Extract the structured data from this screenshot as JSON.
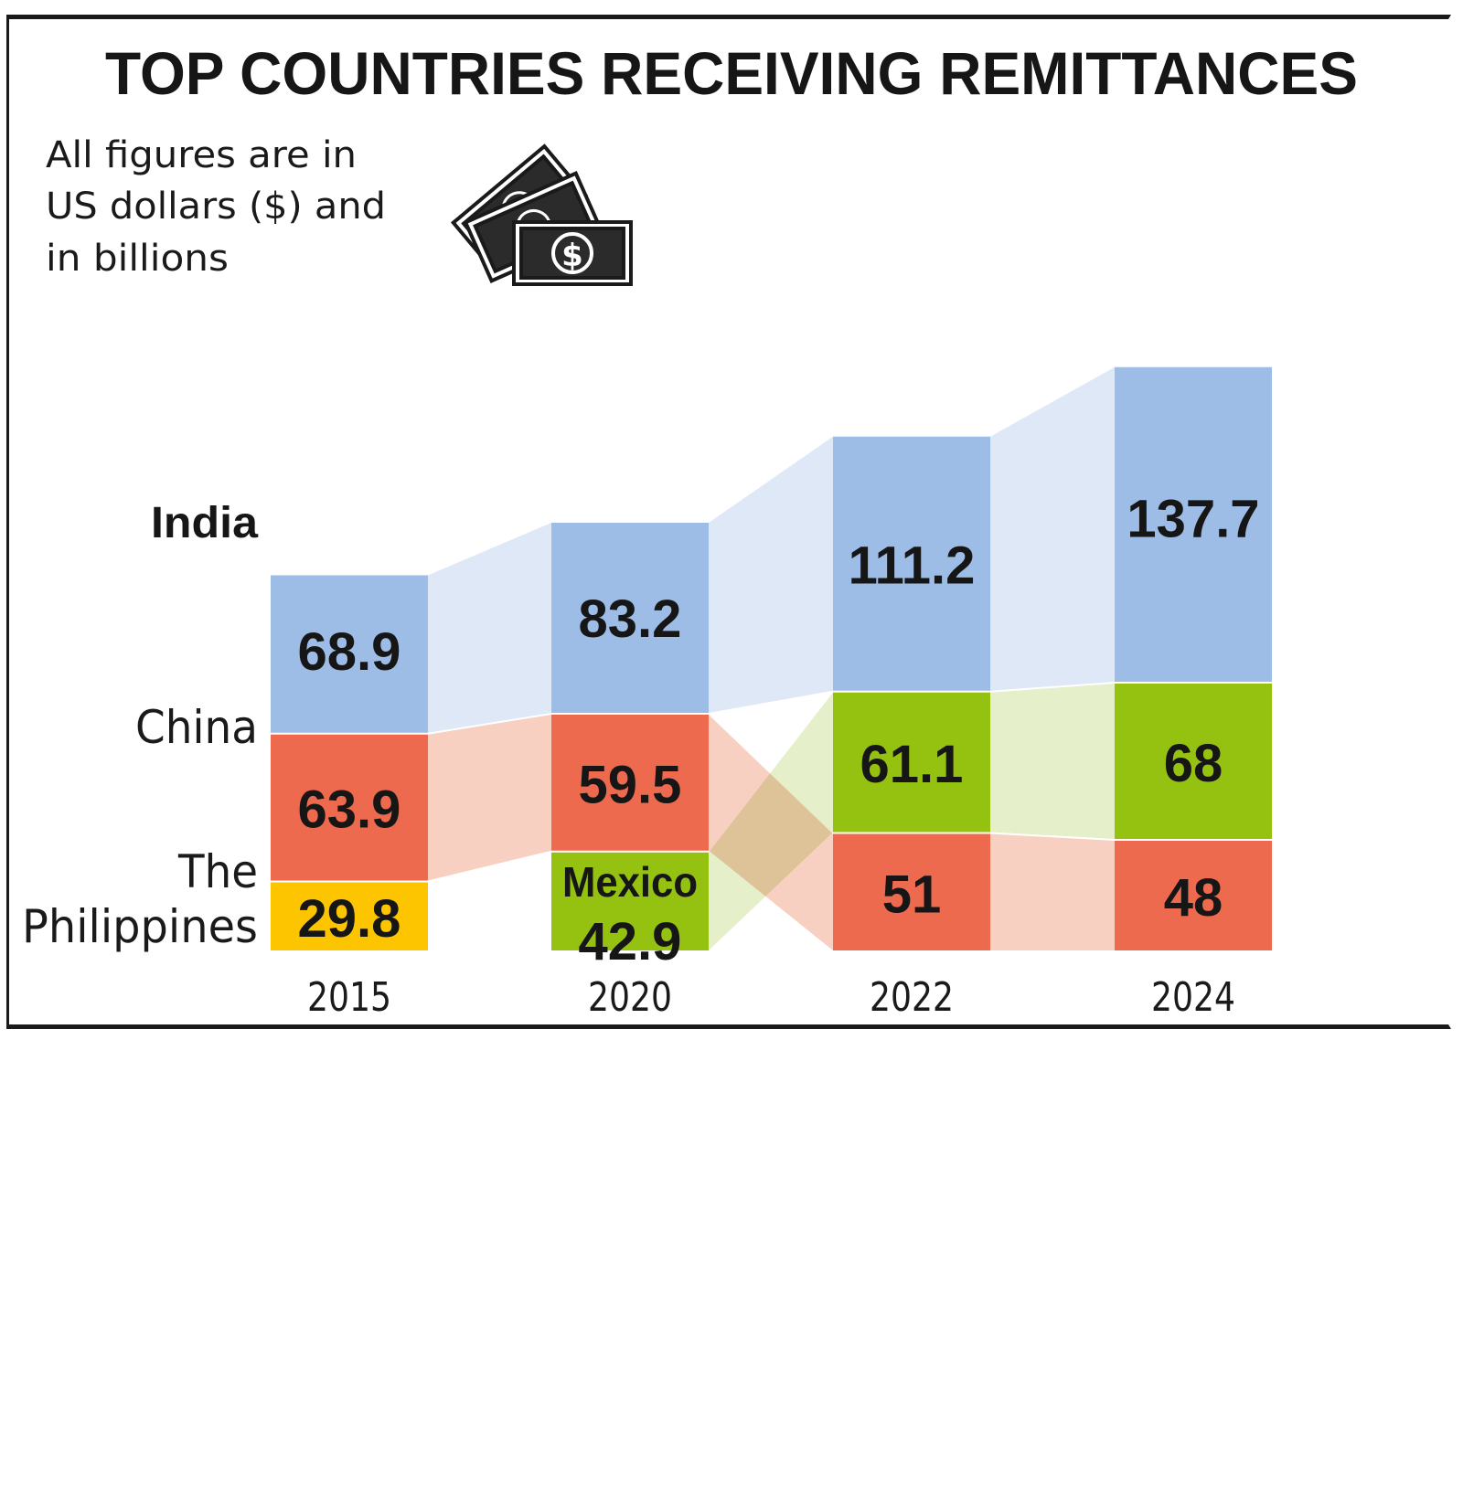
{
  "chart_data": {
    "type": "bar",
    "title": "TOP COUNTRIES RECEIVING REMITTANCES",
    "subtitle": [
      "All figures are in",
      "US dollars ($) and",
      "in billions"
    ],
    "categories": [
      "2015",
      "2020",
      "2022",
      "2024"
    ],
    "row_labels": [
      "India",
      "China",
      "The",
      "Philippines"
    ],
    "icon": "money-bills-icon",
    "colors": {
      "India": "#9dbde6",
      "China": "#ee6a4f",
      "The Philippines": "#fdc500",
      "Mexico": "#95c211",
      "India_flow": "#dfe8f7",
      "China_flow": "#f8d0c2",
      "Mexico_flow": "#e0ecbf"
    },
    "columns": [
      {
        "year": "2015",
        "stack": [
          {
            "country": "India",
            "value": 68.9,
            "label": "68.9"
          },
          {
            "country": "China",
            "value": 63.9,
            "label": "63.9"
          },
          {
            "country": "The Philippines",
            "value": 29.8,
            "label": "29.8"
          }
        ]
      },
      {
        "year": "2020",
        "stack": [
          {
            "country": "India",
            "value": 83.2,
            "label": "83.2"
          },
          {
            "country": "China",
            "value": 59.5,
            "label": "59.5"
          },
          {
            "country": "Mexico",
            "value": 42.9,
            "label": "42.9",
            "name_label": "Mexico"
          }
        ]
      },
      {
        "year": "2022",
        "stack": [
          {
            "country": "India",
            "value": 111.2,
            "label": "111.2"
          },
          {
            "country": "Mexico",
            "value": 61.1,
            "label": "61.1"
          },
          {
            "country": "China",
            "value": 51,
            "label": "51"
          }
        ]
      },
      {
        "year": "2024",
        "stack": [
          {
            "country": "India",
            "value": 137.7,
            "label": "137.7"
          },
          {
            "country": "Mexico",
            "value": 68,
            "label": "68"
          },
          {
            "country": "China",
            "value": 48,
            "label": "48"
          }
        ]
      }
    ]
  }
}
